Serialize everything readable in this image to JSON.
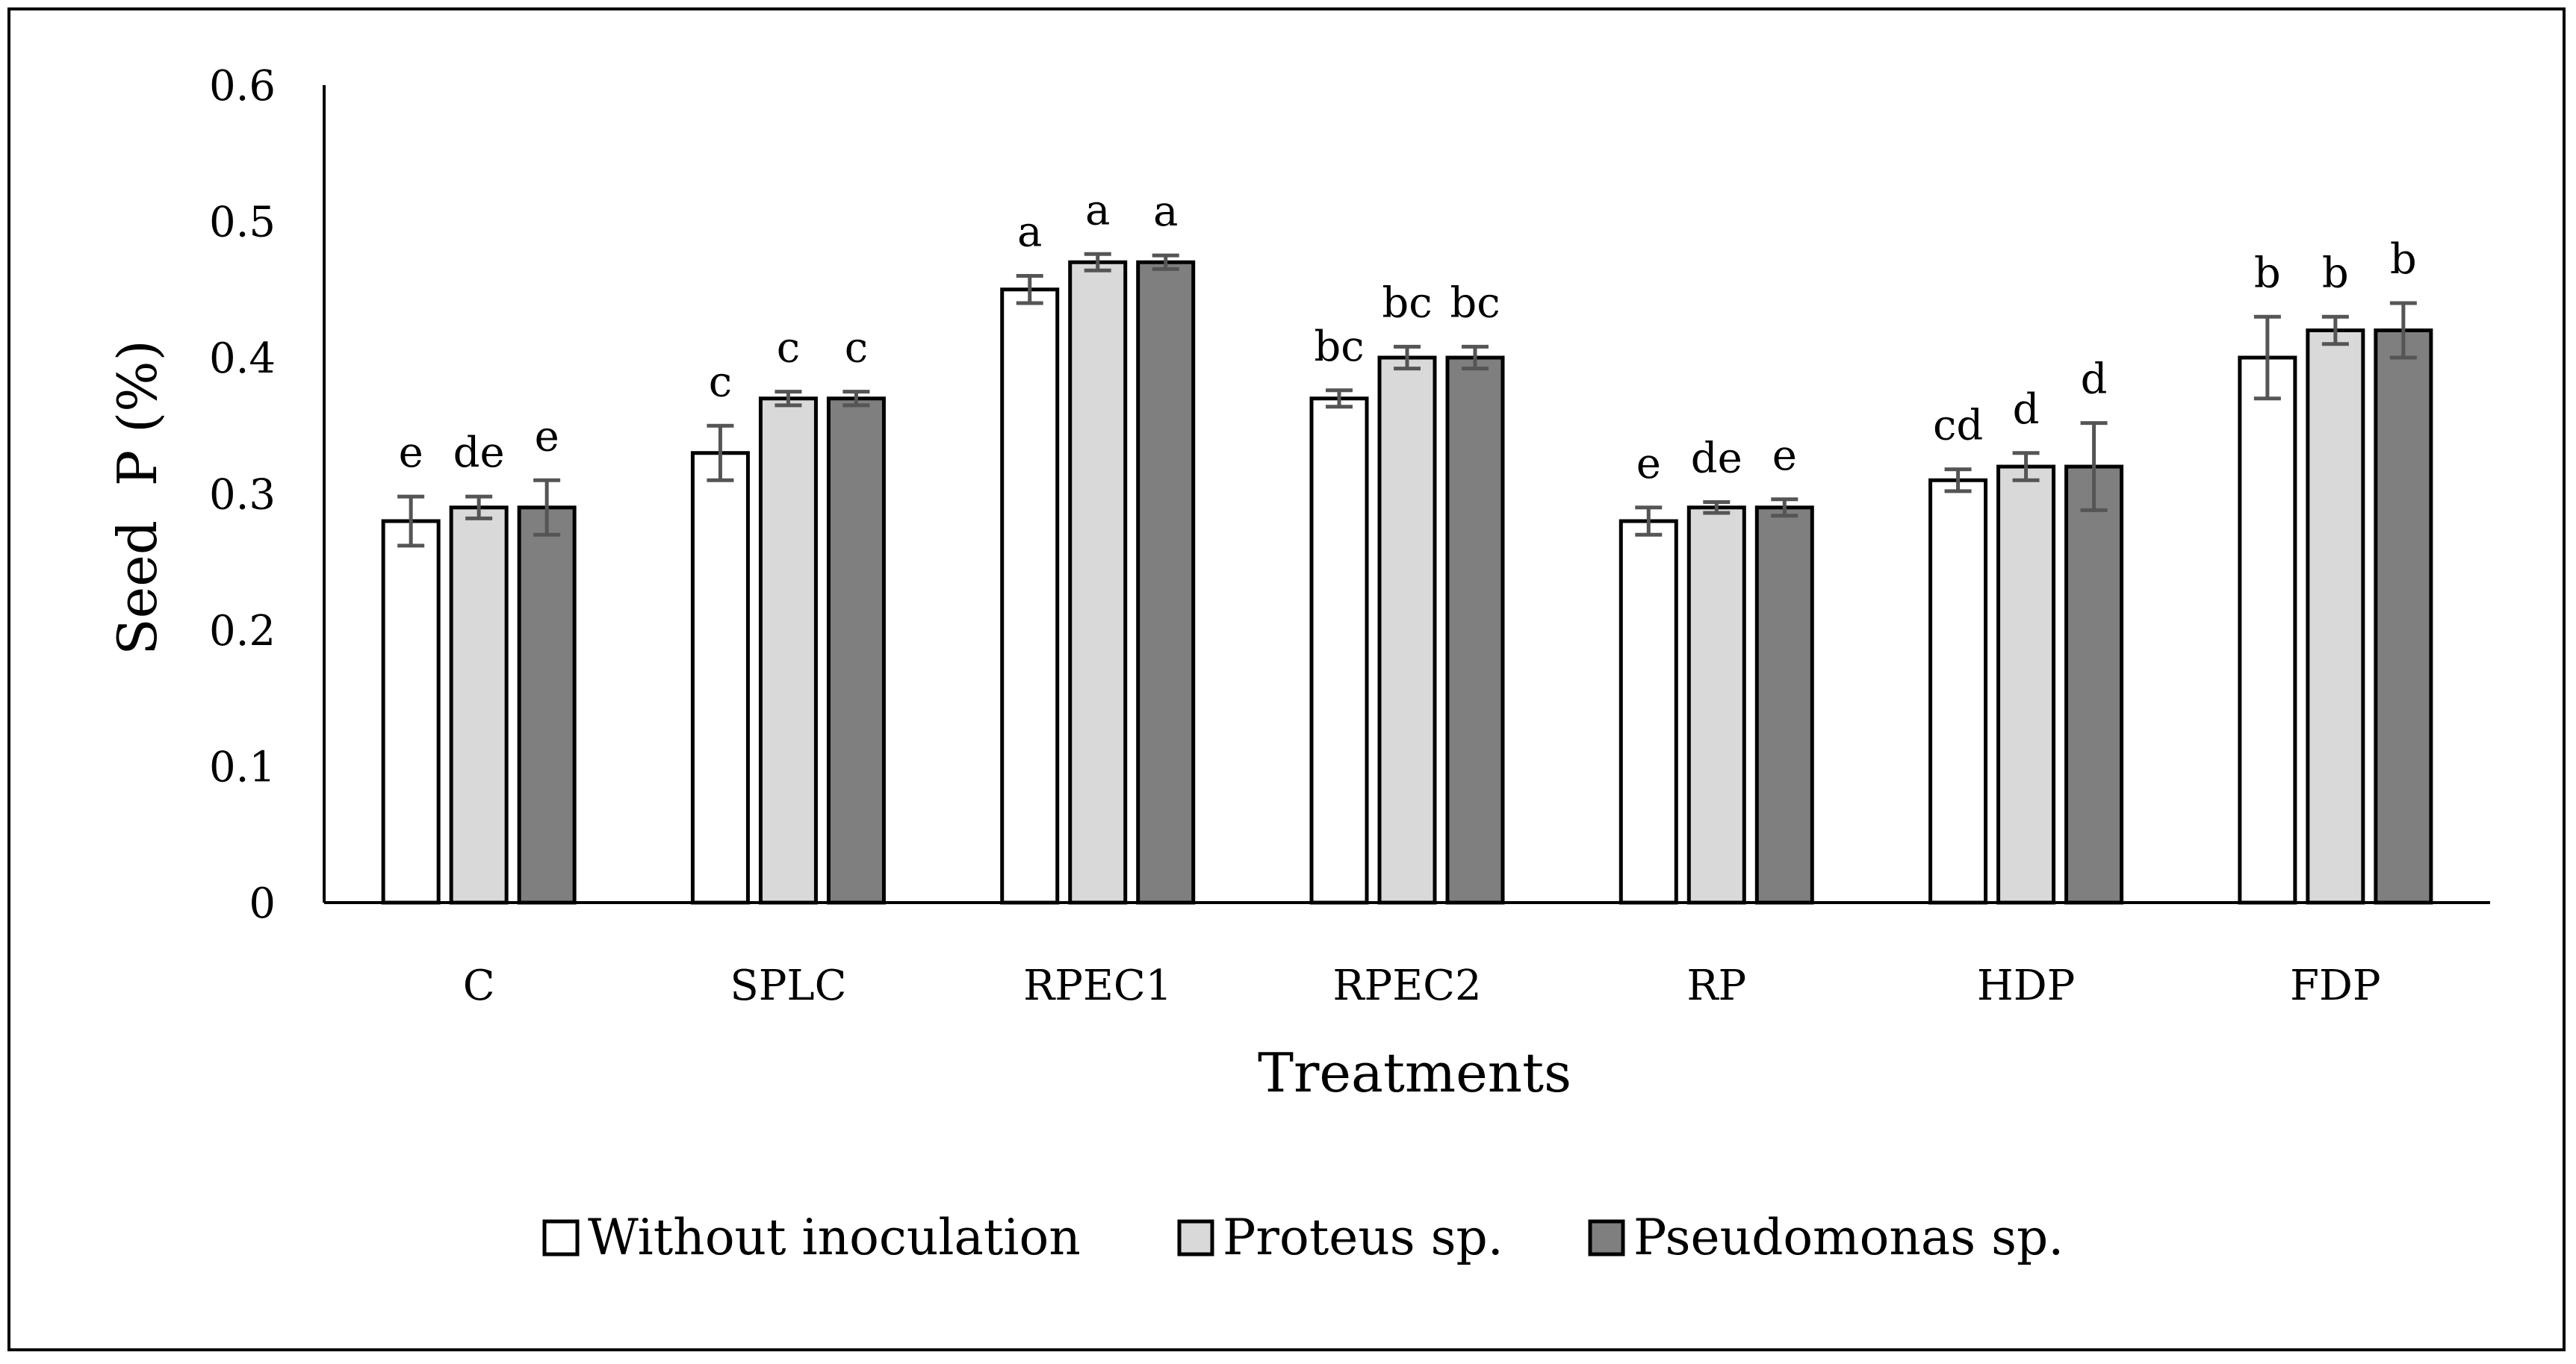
{
  "chart_data": {
    "type": "bar",
    "title": "",
    "xlabel": "Treatments",
    "ylabel": "Seed  P (%)",
    "ylim": [
      0,
      0.6
    ],
    "yticks": [
      "0",
      "0.1",
      "0.2",
      "0.3",
      "0.4",
      "0.5",
      "0.6"
    ],
    "categories": [
      "C",
      "SPLC",
      "RPEC1",
      "RPEC2",
      "RP",
      "HDP",
      "FDP"
    ],
    "series": [
      {
        "name": "Without inoculation",
        "color": "#ffffff",
        "values": [
          0.28,
          0.33,
          0.45,
          0.37,
          0.28,
          0.31,
          0.4
        ],
        "errors": [
          0.018,
          0.02,
          0.01,
          0.006,
          0.01,
          0.008,
          0.03
        ],
        "letters": [
          "e",
          "c",
          "a",
          "bc",
          "e",
          "cd",
          "b"
        ]
      },
      {
        "name": "Proteus sp.",
        "color": "#d9d9d9",
        "values": [
          0.29,
          0.37,
          0.47,
          0.4,
          0.29,
          0.32,
          0.42
        ],
        "errors": [
          0.008,
          0.005,
          0.006,
          0.008,
          0.004,
          0.01,
          0.01
        ],
        "letters": [
          "de",
          "c",
          "a",
          "bc",
          "de",
          "d",
          "b"
        ]
      },
      {
        "name": "Pseudomonas sp.",
        "color": "#7f7f7f",
        "values": [
          0.29,
          0.37,
          0.47,
          0.4,
          0.29,
          0.32,
          0.42
        ],
        "errors": [
          0.02,
          0.005,
          0.005,
          0.008,
          0.006,
          0.032,
          0.02
        ],
        "letters": [
          "e",
          "c",
          "a",
          "bc",
          "e",
          "d",
          "b"
        ]
      }
    ],
    "grid": false,
    "legend_position": "bottom"
  }
}
